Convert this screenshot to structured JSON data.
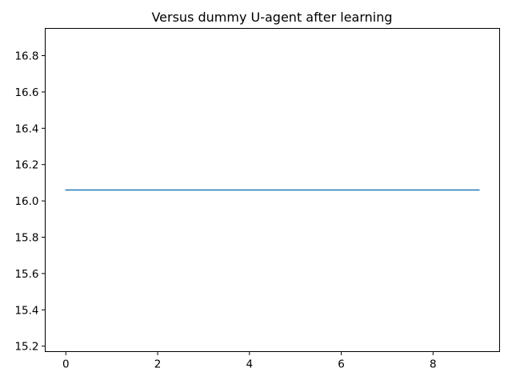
{
  "chart_data": {
    "type": "line",
    "title": "Versus dummy U-agent after learning",
    "xlabel": "",
    "ylabel": "",
    "xlim": [
      -0.45,
      9.45
    ],
    "ylim": [
      15.17,
      16.95
    ],
    "xticks": [
      0,
      2,
      4,
      6,
      8
    ],
    "xtick_labels": [
      "0",
      "2",
      "4",
      "6",
      "8"
    ],
    "yticks": [
      15.2,
      15.4,
      15.6,
      15.8,
      16.0,
      16.2,
      16.4,
      16.6,
      16.8
    ],
    "ytick_labels": [
      "15.2",
      "15.4",
      "15.6",
      "15.8",
      "16.0",
      "16.2",
      "16.4",
      "16.6",
      "16.8"
    ],
    "grid": false,
    "series": [
      {
        "color": "#1f77b4",
        "x": [
          0,
          1,
          2,
          3,
          4,
          5,
          6,
          7,
          8,
          9
        ],
        "y": [
          16.06,
          16.06,
          16.06,
          16.06,
          16.06,
          16.06,
          16.06,
          16.06,
          16.06,
          16.06
        ]
      }
    ]
  }
}
